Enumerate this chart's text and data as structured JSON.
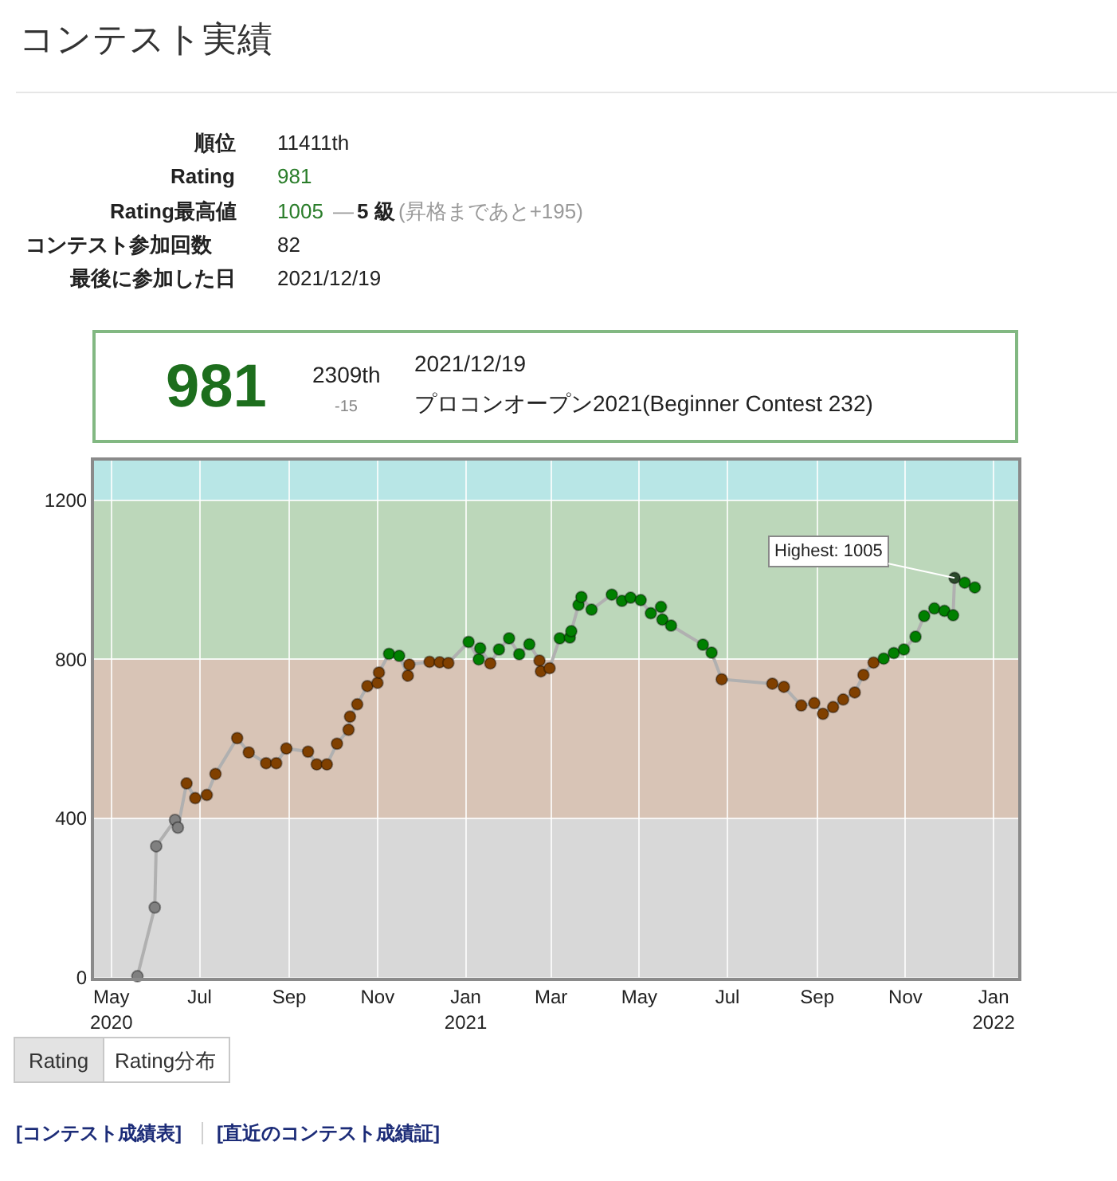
{
  "chart_data": {
    "type": "line",
    "title": "コンテスト実績",
    "x": [
      "2020-05-19",
      "2020-05-31",
      "2020-06-01",
      "2020-06-14",
      "2020-06-16",
      "2020-06-22",
      "2020-06-28",
      "2020-07-06",
      "2020-07-12",
      "2020-07-27",
      "2020-08-04",
      "2020-08-16",
      "2020-08-23",
      "2020-08-30",
      "2020-09-14",
      "2020-09-20",
      "2020-09-27",
      "2020-10-04",
      "2020-10-12",
      "2020-10-13",
      "2020-10-18",
      "2020-10-25",
      "2020-11-01",
      "2020-11-02",
      "2020-11-09",
      "2020-11-16",
      "2020-11-22",
      "2020-11-23",
      "2020-12-07",
      "2020-12-14",
      "2020-12-20",
      "2021-01-03",
      "2021-01-10",
      "2021-01-11",
      "2021-01-18",
      "2021-01-24",
      "2021-01-31",
      "2021-02-07",
      "2021-02-14",
      "2021-02-21",
      "2021-02-22",
      "2021-02-28",
      "2021-03-07",
      "2021-03-14",
      "2021-03-15",
      "2021-03-20",
      "2021-03-22",
      "2021-03-29",
      "2021-04-12",
      "2021-04-19",
      "2021-04-25",
      "2021-05-02",
      "2021-05-09",
      "2021-05-16",
      "2021-05-17",
      "2021-05-23",
      "2021-06-14",
      "2021-06-20",
      "2021-06-27",
      "2021-08-01",
      "2021-08-09",
      "2021-08-21",
      "2021-08-30",
      "2021-09-05",
      "2021-09-12",
      "2021-09-19",
      "2021-09-27",
      "2021-10-03",
      "2021-10-10",
      "2021-10-17",
      "2021-10-24",
      "2021-10-31",
      "2021-11-08",
      "2021-11-14",
      "2021-11-21",
      "2021-11-28",
      "2021-12-04",
      "2021-12-05",
      "2021-12-12",
      "2021-12-19"
    ],
    "values": [
      3,
      176,
      330,
      396,
      377,
      488,
      451,
      459,
      512,
      602,
      566,
      539,
      539,
      576,
      568,
      536,
      536,
      588,
      623,
      656,
      687,
      733,
      741,
      767,
      814,
      809,
      759,
      787,
      794,
      793,
      791,
      844,
      800,
      828,
      790,
      825,
      853,
      813,
      838,
      797,
      770,
      778,
      853,
      855,
      871,
      937,
      957,
      925,
      963,
      947,
      955,
      949,
      916,
      932,
      900,
      885,
      837,
      817,
      750,
      739,
      731,
      684,
      690,
      663,
      680,
      699,
      717,
      761,
      792,
      802,
      816,
      825,
      857,
      909,
      928,
      922,
      911,
      1005,
      993,
      981
    ],
    "color": "#b0b0b0",
    "colors": [
      "#808080",
      "#808080",
      "#808080",
      "#808080",
      "#808080",
      "#804000",
      "#804000",
      "#804000",
      "#804000",
      "#804000",
      "#804000",
      "#804000",
      "#804000",
      "#804000",
      "#804000",
      "#804000",
      "#804000",
      "#804000",
      "#804000",
      "#804000",
      "#804000",
      "#804000",
      "#804000",
      "#804000",
      "#008000",
      "#008000",
      "#804000",
      "#804000",
      "#804000",
      "#804000",
      "#804000",
      "#008000",
      "#008000",
      "#008000",
      "#804000",
      "#008000",
      "#008000",
      "#008000",
      "#008000",
      "#804000",
      "#804000",
      "#804000",
      "#008000",
      "#008000",
      "#008000",
      "#008000",
      "#008000",
      "#008000",
      "#008000",
      "#008000",
      "#008000",
      "#008000",
      "#008000",
      "#008000",
      "#008000",
      "#008000",
      "#008000",
      "#008000",
      "#804000",
      "#804000",
      "#804000",
      "#804000",
      "#804000",
      "#804000",
      "#804000",
      "#804000",
      "#804000",
      "#804000",
      "#804000",
      "#008000",
      "#008000",
      "#008000",
      "#008000",
      "#008000",
      "#008000",
      "#008000",
      "#008000",
      "#2b4a2b",
      "#008000",
      "#008000"
    ],
    "marker": "circle",
    "line_style": "solid",
    "grid": true,
    "xlim": [
      "2020-04-19",
      "2022-01-18"
    ],
    "xticks": [
      {
        "value": "2020-05-01",
        "label": "May\n2020"
      },
      {
        "value": "2020-07-01",
        "label": "Jul"
      },
      {
        "value": "2020-09-01",
        "label": "Sep"
      },
      {
        "value": "2020-11-01",
        "label": "Nov"
      },
      {
        "value": "2021-01-01",
        "label": "Jan\n2021"
      },
      {
        "value": "2021-03-01",
        "label": "Mar"
      },
      {
        "value": "2021-05-01",
        "label": "May"
      },
      {
        "value": "2021-07-01",
        "label": "Jul"
      },
      {
        "value": "2021-09-01",
        "label": "Sep"
      },
      {
        "value": "2021-11-01",
        "label": "Nov"
      },
      {
        "value": "2022-01-01",
        "label": "Jan\n2022"
      }
    ],
    "ylim": [
      0,
      1300
    ],
    "yticks": [
      0,
      400,
      800,
      1200
    ],
    "bands": [
      {
        "axis": "y",
        "from": 0,
        "to": 400,
        "color": "#d8d8d8"
      },
      {
        "axis": "y",
        "from": 400,
        "to": 800,
        "color": "#d8c4b6"
      },
      {
        "axis": "y",
        "from": 800,
        "to": 1200,
        "color": "#bcd7ba"
      },
      {
        "axis": "y",
        "from": 1200,
        "to": 1300,
        "color": "#b8e6e6"
      }
    ],
    "annotations": [
      "順位",
      "11411th",
      "Rating",
      "981",
      "Rating最高値",
      "1005",
      "—",
      "5 級",
      "(昇格まであと+195)",
      "コンテスト参加回数",
      "82",
      "最後に参加した日",
      "2021/12/19",
      "981",
      "2309th",
      "-15",
      "2021/12/19",
      "プロコンオープン2021(Beginner Contest 232)",
      "Rating",
      "Rating分布",
      "[コンテスト成績表]",
      "[直近のコンテスト成績証]",
      {
        "text": "Highest: 1005",
        "x": "2021-12-05",
        "y": 1005
      }
    ]
  }
}
